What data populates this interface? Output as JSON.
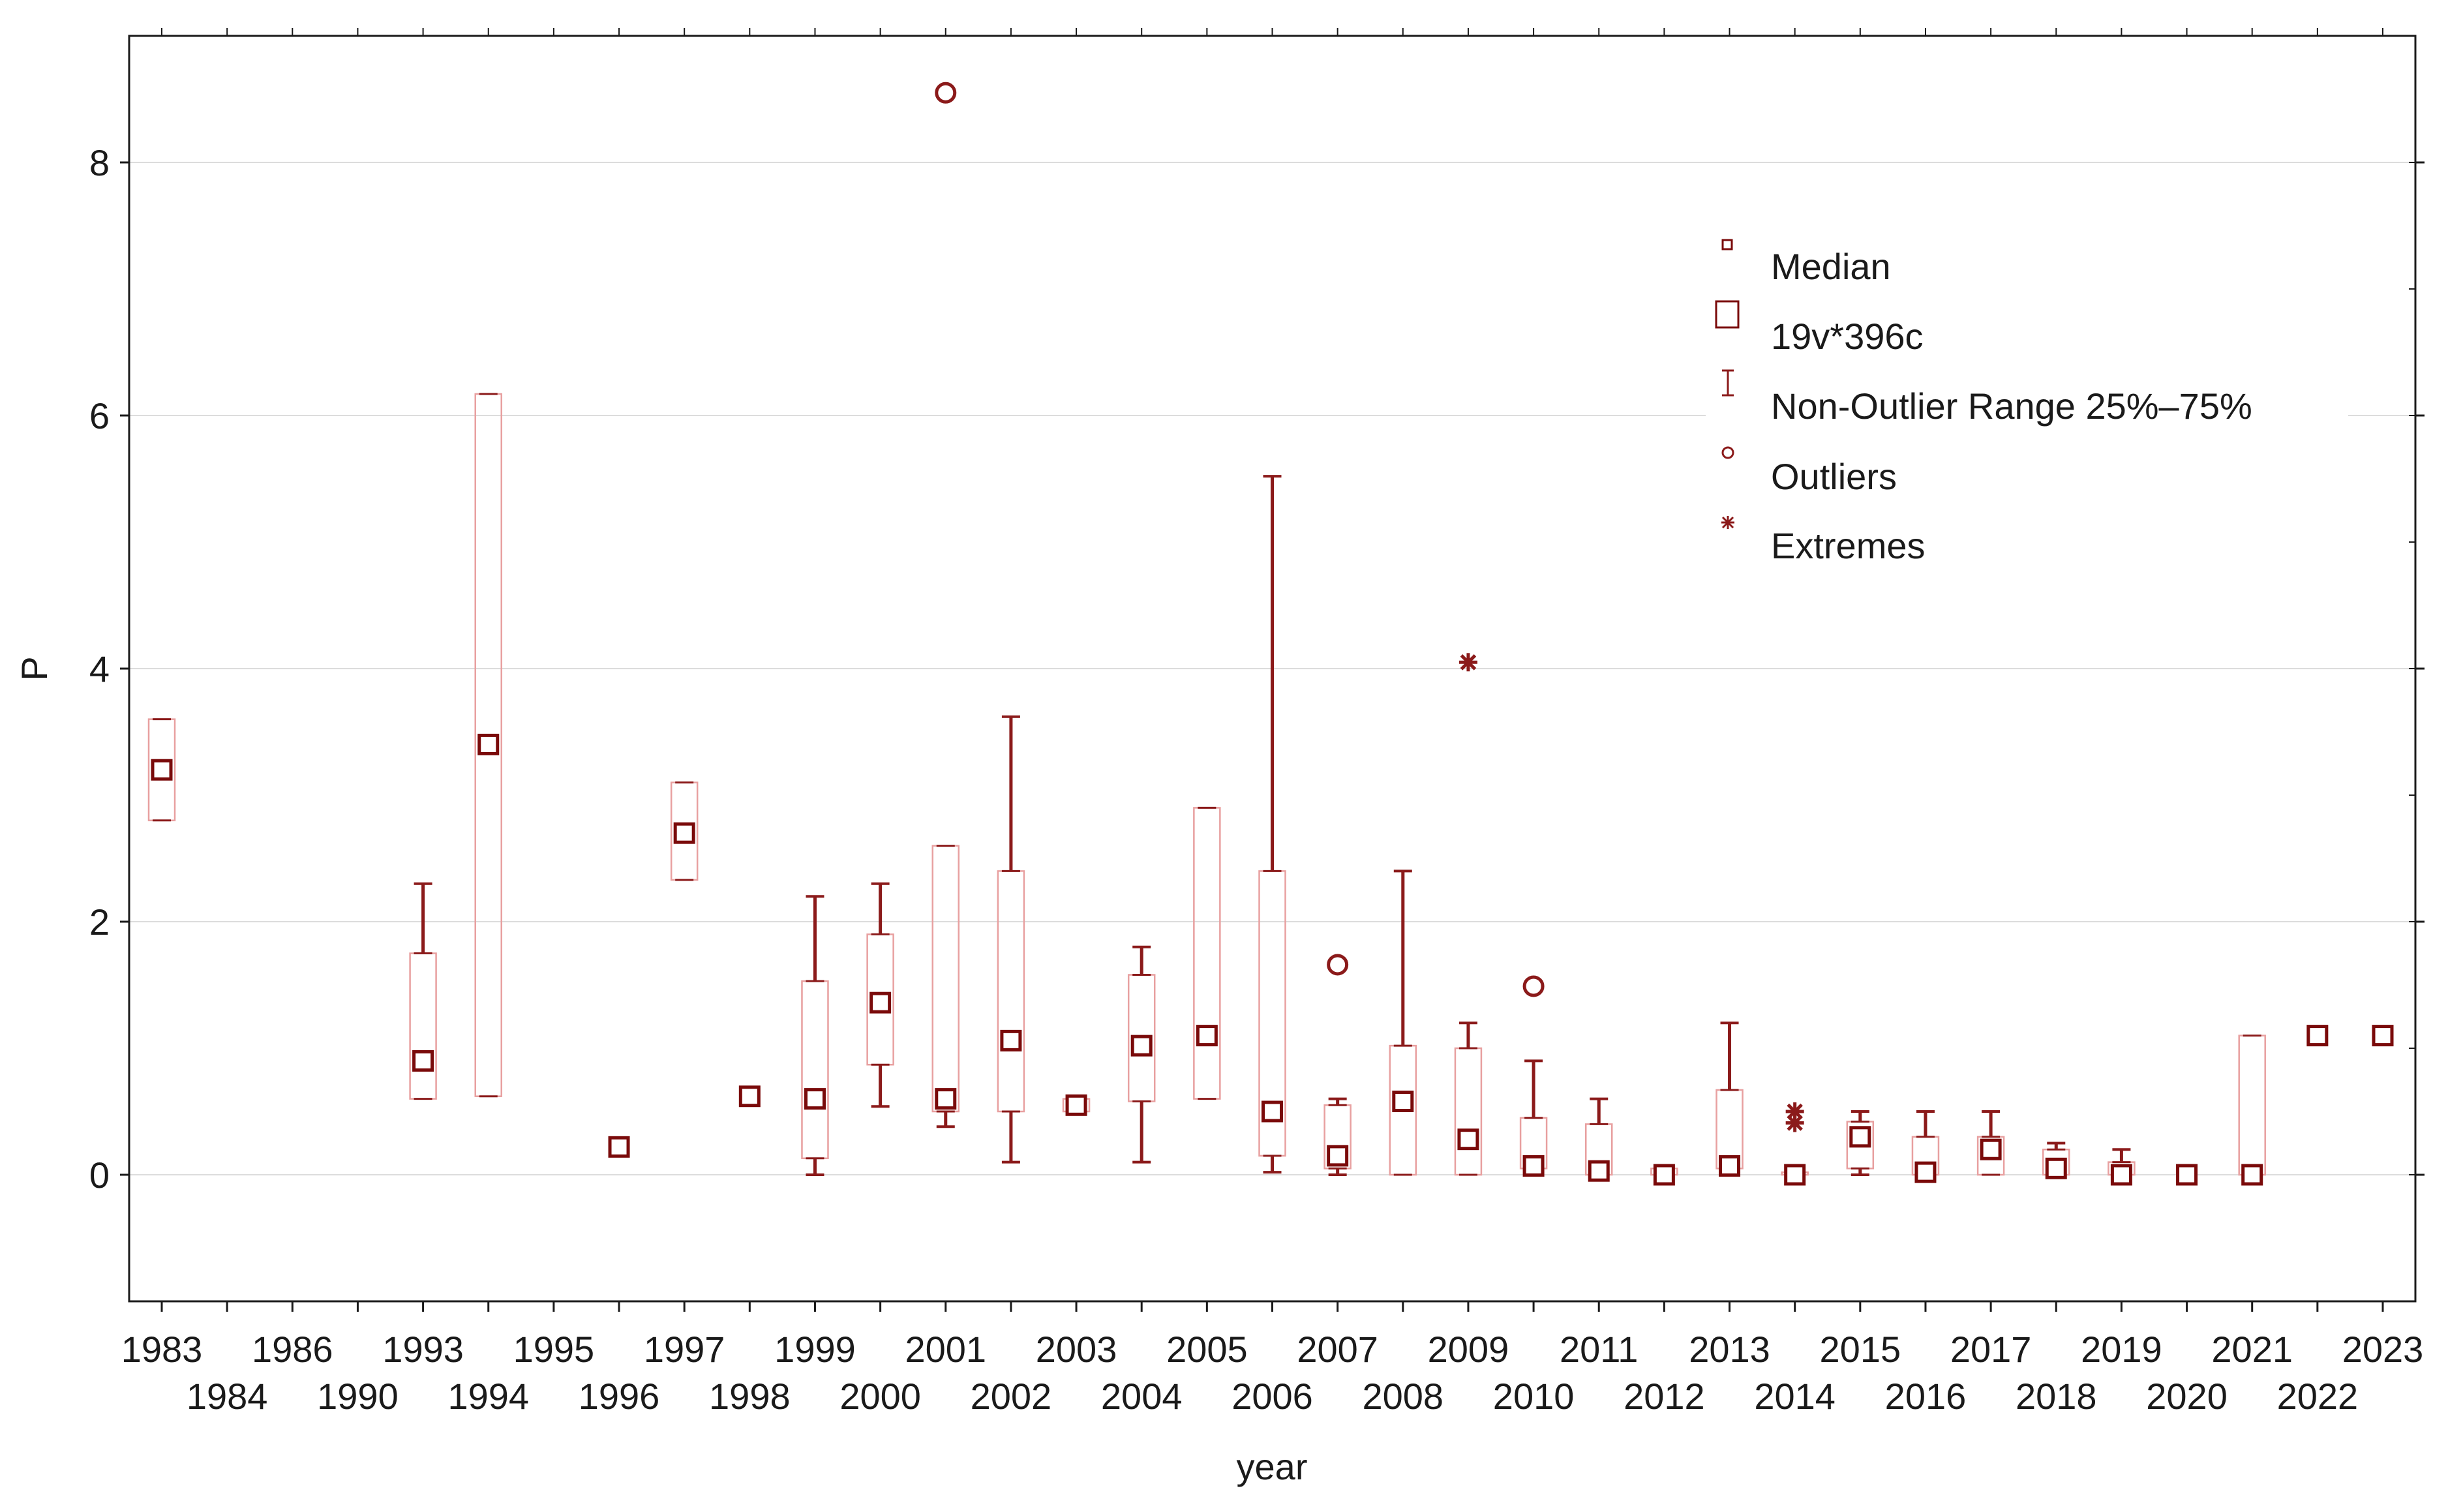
{
  "chart_data": {
    "type": "boxplot",
    "title": "",
    "xlabel": "year",
    "ylabel": "P",
    "ylim": [
      -1,
      9
    ],
    "yticks": [
      0,
      2,
      4,
      6,
      8
    ],
    "grid": "horizontal",
    "categories": [
      "1983",
      "1984",
      "1986",
      "1990",
      "1993",
      "1994",
      "1995",
      "1996",
      "1997",
      "1998",
      "1999",
      "2000",
      "2001",
      "2002",
      "2003",
      "2004",
      "2005",
      "2006",
      "2007",
      "2008",
      "2009",
      "2010",
      "2011",
      "2012",
      "2013",
      "2014",
      "2015",
      "2016",
      "2017",
      "2018",
      "2019",
      "2020",
      "2021",
      "2022",
      "2023"
    ],
    "boxes": [
      {
        "year": "1983",
        "median": 3.2,
        "q1": 2.8,
        "q3": 3.6,
        "min": 2.8,
        "max": 3.6
      },
      {
        "year": "1993",
        "median": 0.9,
        "q1": 0.6,
        "q3": 1.75,
        "min": 0.6,
        "max": 2.3
      },
      {
        "year": "1994",
        "median": 3.4,
        "q1": 0.62,
        "q3": 6.17,
        "min": 0.62,
        "max": 6.17
      },
      {
        "year": "1996",
        "median": 0.22,
        "q1": 0.22,
        "q3": 0.22,
        "min": 0.22,
        "max": 0.22
      },
      {
        "year": "1997",
        "median": 2.7,
        "q1": 2.33,
        "q3": 3.1,
        "min": 2.33,
        "max": 3.1
      },
      {
        "year": "1998",
        "median": 0.62,
        "q1": 0.62,
        "q3": 0.62,
        "min": 0.62,
        "max": 0.62
      },
      {
        "year": "1999",
        "median": 0.6,
        "q1": 0.13,
        "q3": 1.53,
        "min": 0.0,
        "max": 2.2
      },
      {
        "year": "2000",
        "median": 1.36,
        "q1": 0.87,
        "q3": 1.9,
        "min": 0.54,
        "max": 2.3
      },
      {
        "year": "2001",
        "median": 0.6,
        "q1": 0.5,
        "q3": 2.6,
        "min": 0.38,
        "max": 2.6
      },
      {
        "year": "2002",
        "median": 1.06,
        "q1": 0.5,
        "q3": 2.4,
        "min": 0.1,
        "max": 3.62
      },
      {
        "year": "2003",
        "median": 0.55,
        "q1": 0.5,
        "q3": 0.6,
        "min": 0.5,
        "max": 0.6
      },
      {
        "year": "2004",
        "median": 1.02,
        "q1": 0.58,
        "q3": 1.58,
        "min": 0.1,
        "max": 1.8
      },
      {
        "year": "2005",
        "median": 1.1,
        "q1": 0.6,
        "q3": 2.9,
        "min": 0.6,
        "max": 2.9
      },
      {
        "year": "2006",
        "median": 0.5,
        "q1": 0.15,
        "q3": 2.4,
        "min": 0.02,
        "max": 5.52
      },
      {
        "year": "2007",
        "median": 0.15,
        "q1": 0.05,
        "q3": 0.55,
        "min": 0.0,
        "max": 0.6
      },
      {
        "year": "2008",
        "median": 0.58,
        "q1": 0.0,
        "q3": 1.02,
        "min": 0.0,
        "max": 2.4
      },
      {
        "year": "2009",
        "median": 0.28,
        "q1": 0.0,
        "q3": 1.0,
        "min": 0.0,
        "max": 1.2
      },
      {
        "year": "2010",
        "median": 0.07,
        "q1": 0.05,
        "q3": 0.45,
        "min": 0.05,
        "max": 0.9
      },
      {
        "year": "2011",
        "median": 0.03,
        "q1": 0.0,
        "q3": 0.4,
        "min": 0.0,
        "max": 0.6
      },
      {
        "year": "2012",
        "median": 0.0,
        "q1": 0.0,
        "q3": 0.05,
        "min": 0.0,
        "max": 0.05
      },
      {
        "year": "2013",
        "median": 0.07,
        "q1": 0.05,
        "q3": 0.67,
        "min": 0.05,
        "max": 1.2
      },
      {
        "year": "2014",
        "median": 0.0,
        "q1": 0.0,
        "q3": 0.02,
        "min": 0.0,
        "max": 0.02
      },
      {
        "year": "2015",
        "median": 0.3,
        "q1": 0.05,
        "q3": 0.42,
        "min": 0.0,
        "max": 0.5
      },
      {
        "year": "2016",
        "median": 0.02,
        "q1": 0.0,
        "q3": 0.3,
        "min": 0.0,
        "max": 0.5
      },
      {
        "year": "2017",
        "median": 0.2,
        "q1": 0.0,
        "q3": 0.3,
        "min": 0.0,
        "max": 0.5
      },
      {
        "year": "2018",
        "median": 0.05,
        "q1": 0.0,
        "q3": 0.2,
        "min": 0.0,
        "max": 0.25
      },
      {
        "year": "2019",
        "median": 0.0,
        "q1": 0.0,
        "q3": 0.1,
        "min": 0.0,
        "max": 0.2
      },
      {
        "year": "2020",
        "median": 0.0,
        "q1": 0.0,
        "q3": 0.0,
        "min": 0.0,
        "max": 0.0
      },
      {
        "year": "2021",
        "median": 0.0,
        "q1": 0.0,
        "q3": 1.1,
        "min": 0.0,
        "max": 1.1
      },
      {
        "year": "2022",
        "median": 1.1,
        "q1": 1.1,
        "q3": 1.1,
        "min": 1.1,
        "max": 1.1
      },
      {
        "year": "2023",
        "median": 1.1,
        "q1": 1.1,
        "q3": 1.1,
        "min": 1.1,
        "max": 1.1
      }
    ],
    "outliers": [
      {
        "year": "2001",
        "value": 8.55
      },
      {
        "year": "2007",
        "value": 1.66
      },
      {
        "year": "2010",
        "value": 1.49
      }
    ],
    "extremes": [
      {
        "year": "2009",
        "value": 4.05
      },
      {
        "year": "2014",
        "value": 0.5
      },
      {
        "year": "2014",
        "value": 0.41
      }
    ],
    "legend": {
      "position": "top-right",
      "entries": [
        {
          "key": "median",
          "label": "Median"
        },
        {
          "key": "box",
          "label": "19v*396c"
        },
        {
          "key": "whisker",
          "label": "Non-Outlier Range 25%–75%"
        },
        {
          "key": "outlier",
          "label": "Outliers"
        },
        {
          "key": "extreme",
          "label": "Extremes"
        }
      ]
    },
    "colors": {
      "box_stroke": "#e8a0a0",
      "median_stroke": "#7a0a0a",
      "whisker": "#8b1a1a",
      "marker": "#8b1a1a",
      "grid": "#dcdcdc",
      "axis": "#1a1a1a"
    }
  }
}
